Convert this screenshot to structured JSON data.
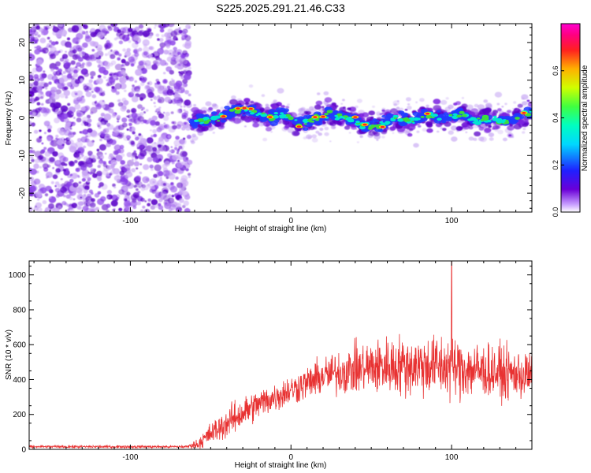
{
  "title": "S225.2025.291.21.46.C33",
  "colors": {
    "snr_line": "#e83232",
    "spec_dark": "#5a00c8",
    "spec_blue": "#1e3cff",
    "spec_cyan": "#00e5d0",
    "spec_green": "#3cdc3c",
    "spec_red": "#ff2020",
    "axis": "#000000"
  },
  "chart_data": [
    {
      "type": "heatmap",
      "name": "spectrogram",
      "xlabel": "Height of straight line (km)",
      "ylabel": "Frequency (Hz)",
      "xlim": [
        -163,
        150
      ],
      "ylim": [
        -25,
        25
      ],
      "xticks": [
        -100,
        0,
        100
      ],
      "yticks": [
        -20,
        -10,
        0,
        10,
        20
      ],
      "colorbar": {
        "label": "Normalized spectral amplitude",
        "range": [
          0,
          0.8
        ],
        "ticks": [
          0.0,
          0.2,
          0.4,
          0.6
        ]
      },
      "signal_ridge": {
        "x_start": -63,
        "freq_track": [
          [
            -60,
            -1
          ],
          [
            -45,
            0
          ],
          [
            -35,
            2
          ],
          [
            -28,
            2.5
          ],
          [
            -20,
            1
          ],
          [
            -12,
            0
          ],
          [
            -5,
            1
          ],
          [
            0,
            0
          ],
          [
            5,
            -2
          ],
          [
            15,
            0
          ],
          [
            25,
            1
          ],
          [
            35,
            0
          ],
          [
            45,
            -2
          ],
          [
            55,
            -2
          ],
          [
            65,
            0
          ],
          [
            75,
            -1
          ],
          [
            85,
            1
          ],
          [
            95,
            0
          ],
          [
            105,
            1
          ],
          [
            115,
            -1
          ],
          [
            125,
            0
          ],
          [
            135,
            -1
          ],
          [
            145,
            1
          ]
        ]
      }
    },
    {
      "type": "line",
      "name": "snr",
      "xlabel": "Height of straight line (km)",
      "ylabel": "SNR (10 * v/v)",
      "xlim": [
        -163,
        150
      ],
      "ylim": [
        0,
        1080
      ],
      "xticks": [
        -100,
        0,
        100
      ],
      "yticks": [
        0,
        200,
        400,
        600,
        800,
        1000
      ],
      "envelope": {
        "x": [
          -163,
          -65,
          -58,
          -50,
          -40,
          -30,
          -20,
          -10,
          0,
          10,
          20,
          30,
          40,
          50,
          60,
          70,
          80,
          90,
          100,
          110,
          120,
          130,
          140,
          150
        ],
        "mean": [
          15,
          15,
          30,
          90,
          150,
          210,
          260,
          300,
          340,
          380,
          420,
          440,
          460,
          470,
          480,
          480,
          480,
          480,
          470,
          460,
          450,
          440,
          430,
          420
        ],
        "spread": [
          10,
          10,
          40,
          80,
          110,
          120,
          110,
          110,
          110,
          120,
          140,
          160,
          180,
          200,
          210,
          220,
          220,
          230,
          230,
          220,
          200,
          190,
          180,
          180
        ]
      },
      "peak": [
        100,
        1075
      ]
    }
  ]
}
